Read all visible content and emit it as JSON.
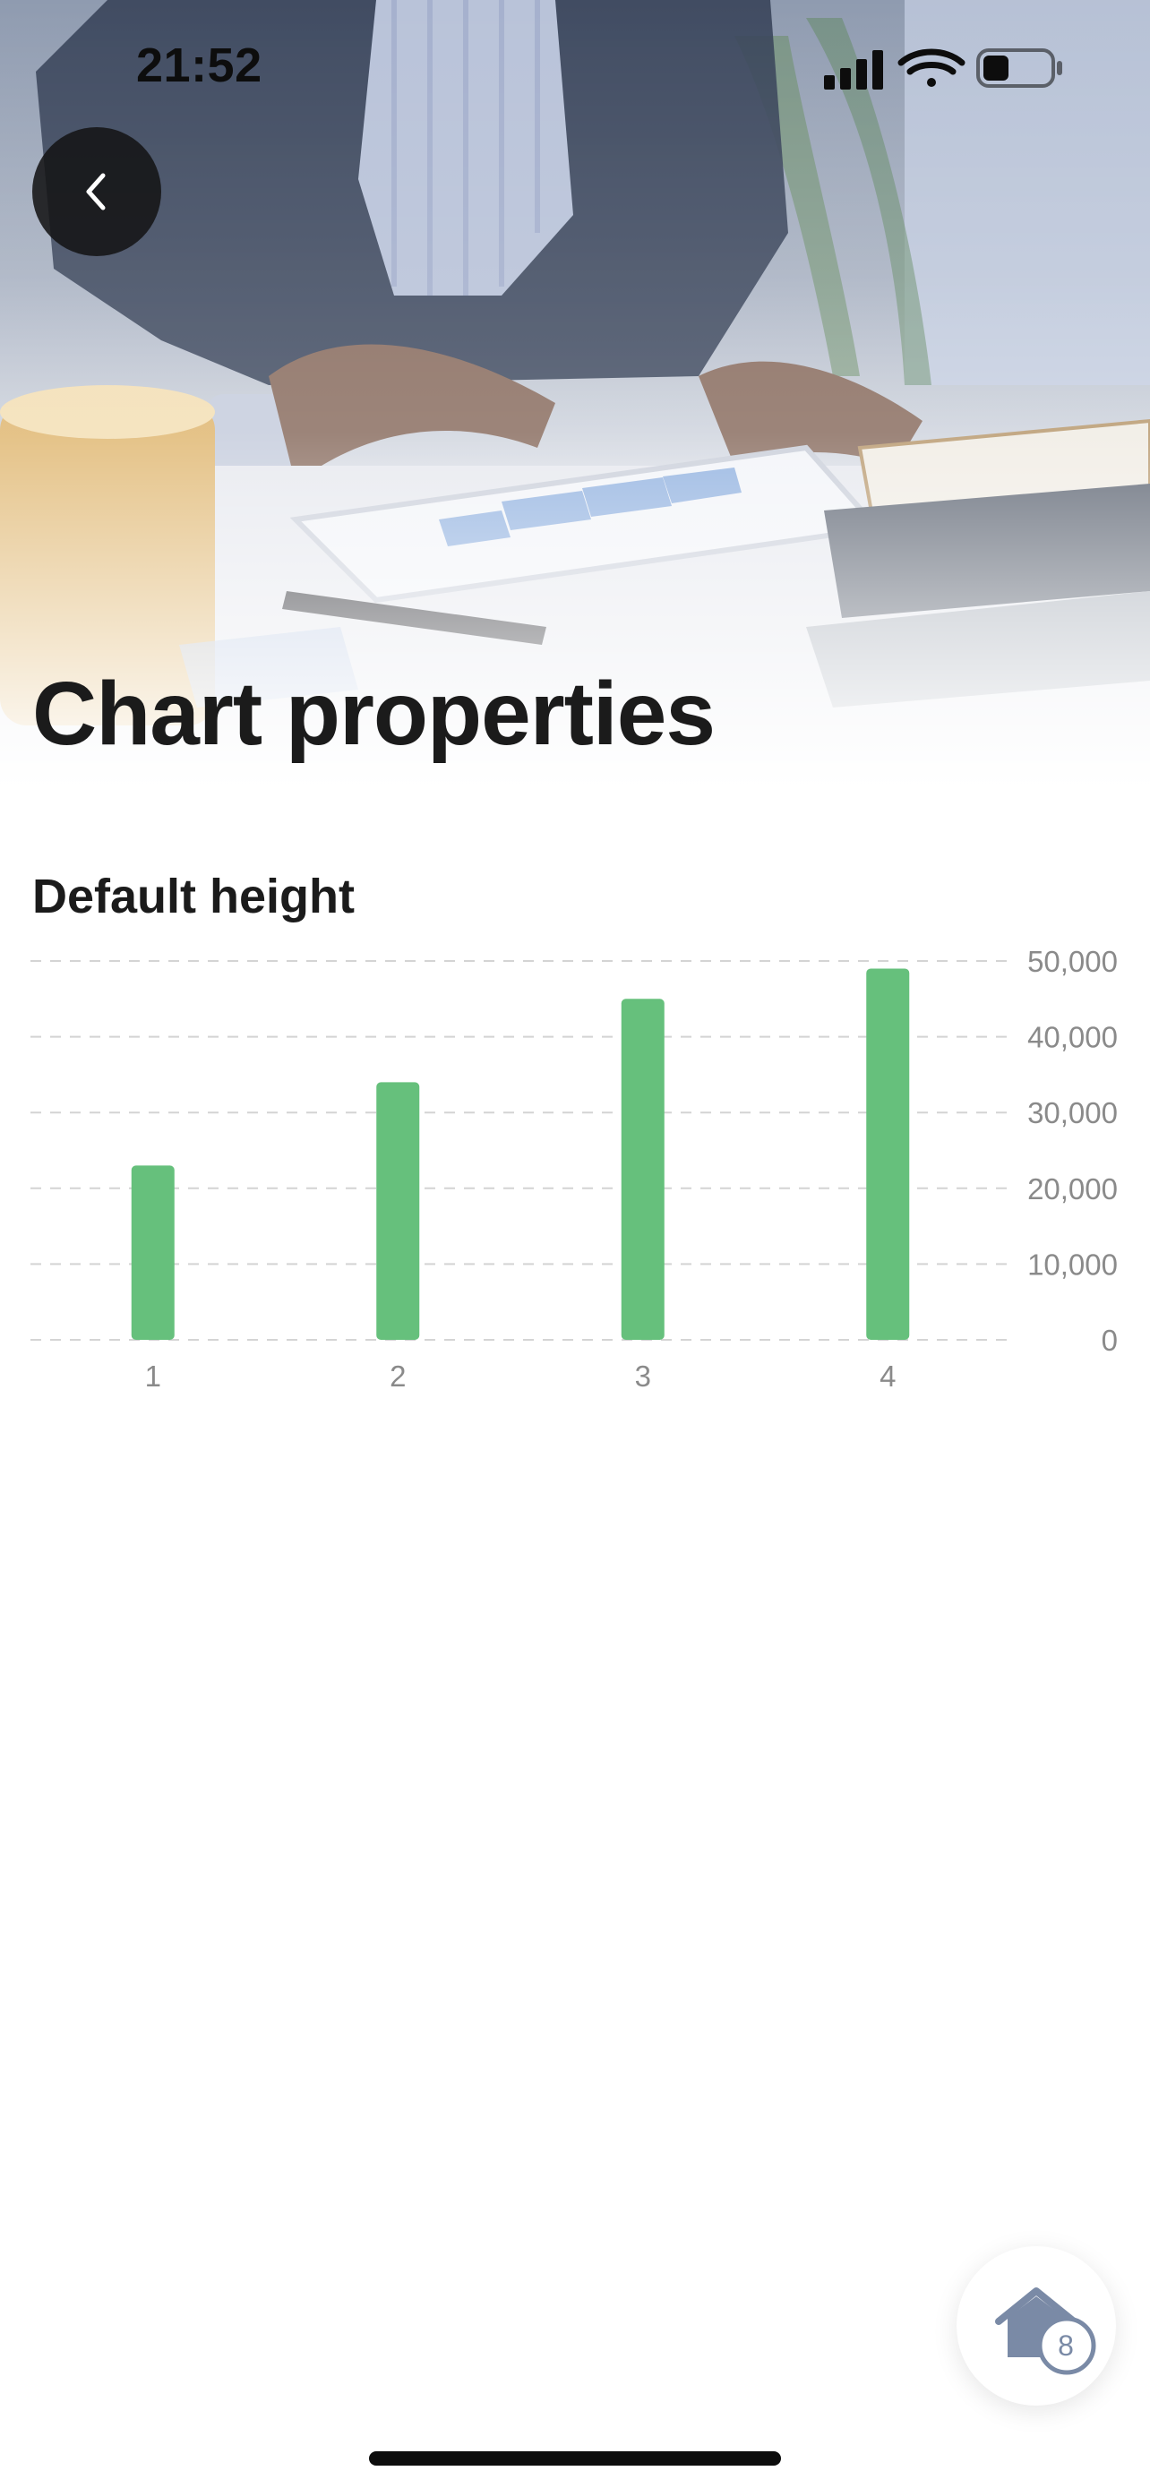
{
  "status_bar": {
    "time": "21:52"
  },
  "header": {
    "title": "Chart properties"
  },
  "section": {
    "title": "Default height"
  },
  "colors": {
    "bar": "#66c07c",
    "grid": "#d4d4d4",
    "axis_text": "#8a8a8a",
    "title": "#1b1b1b"
  },
  "chart_data": {
    "type": "bar",
    "categories": [
      "1",
      "2",
      "3",
      "4"
    ],
    "values": [
      23000,
      34000,
      45000,
      49000
    ],
    "ylim": [
      0,
      50000
    ],
    "y_ticks": [
      "0",
      "10,000",
      "20,000",
      "30,000",
      "40,000",
      "50,000"
    ],
    "y_tick_values": [
      0,
      10000,
      20000,
      30000,
      40000,
      50000
    ],
    "y_axis_side": "right",
    "grid": true
  },
  "fab": {
    "icon": "home-icon",
    "badge": "8"
  }
}
